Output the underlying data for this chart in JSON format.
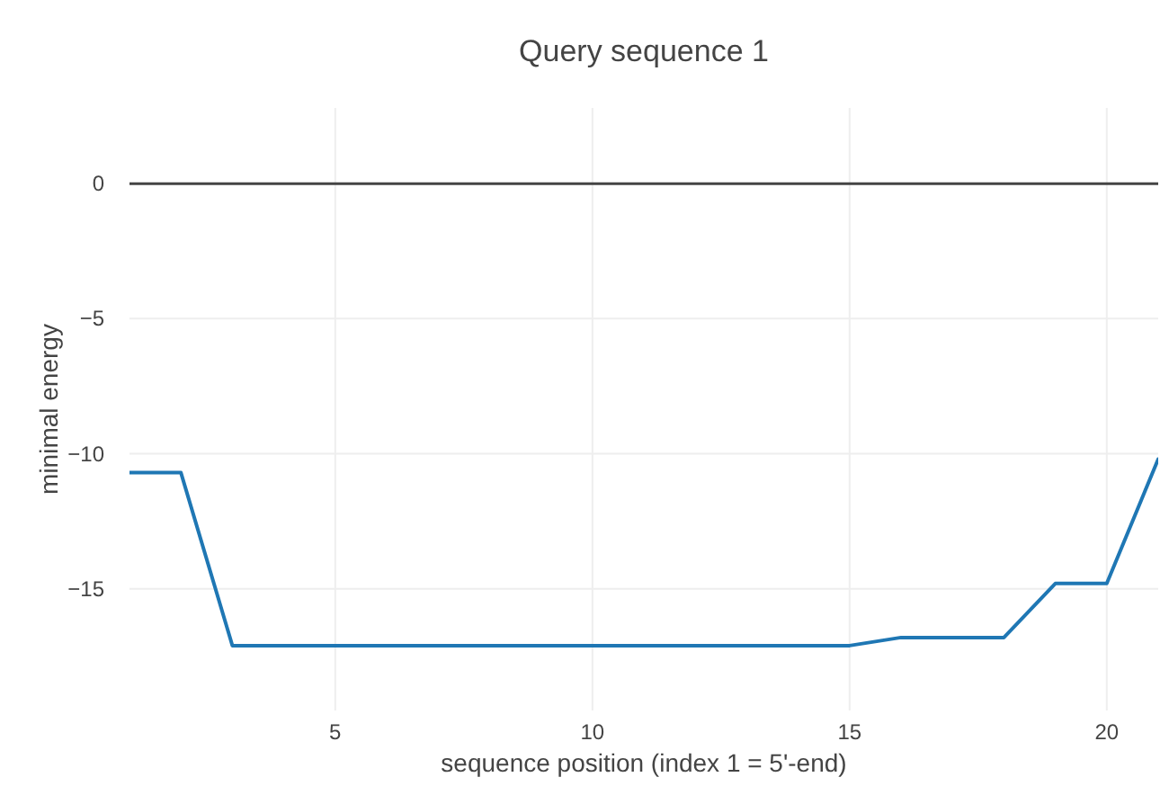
{
  "chart_data": {
    "type": "line",
    "title": "Query sequence 1",
    "xlabel": "sequence position (index 1 = 5'-end)",
    "ylabel": "minimal energy",
    "x": [
      1,
      2,
      3,
      4,
      5,
      6,
      7,
      8,
      9,
      10,
      11,
      12,
      13,
      14,
      15,
      16,
      17,
      18,
      19,
      20,
      21
    ],
    "series": [
      {
        "color": "#1f77b4",
        "values": [
          -10.7,
          -10.7,
          -17.1,
          -17.1,
          -17.1,
          -17.1,
          -17.1,
          -17.1,
          -17.1,
          -17.1,
          -17.1,
          -17.1,
          -17.1,
          -17.1,
          -17.1,
          -16.8,
          -16.8,
          -16.8,
          -14.8,
          -14.8,
          -10.2
        ]
      }
    ],
    "xlim": [
      1,
      21
    ],
    "xticks": [
      5,
      10,
      15,
      20
    ],
    "ylim": [
      -19.5,
      2.8
    ],
    "yticks": [
      0,
      -5,
      -10,
      -15
    ],
    "grid": true,
    "marker": "none",
    "line_style": "solid",
    "ref_lines": [
      {
        "axis": "y",
        "value": 0,
        "color": "#444444"
      }
    ]
  }
}
